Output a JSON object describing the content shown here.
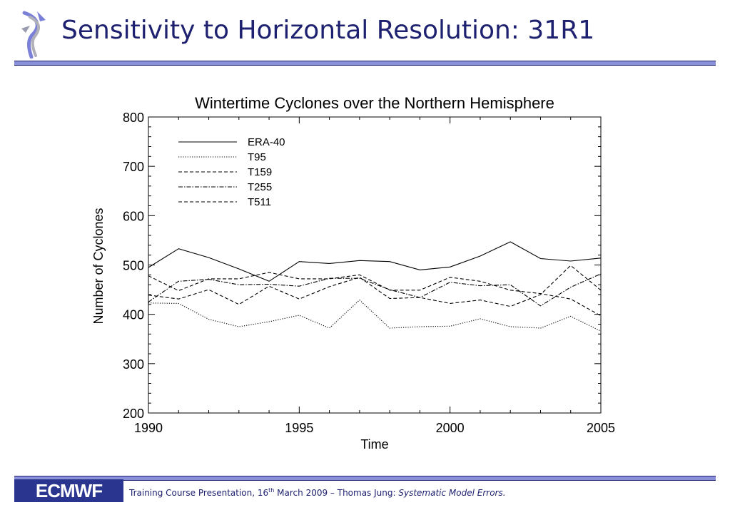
{
  "header": {
    "title": "Sensitivity to Horizontal Resolution: 31R1"
  },
  "footer": {
    "logo_text": "ECMWF",
    "text_prefix": "Training Course Presentation, 16",
    "text_sup": "th",
    "text_mid": " March 2009 – Thomas Jung: ",
    "text_italic": "Systematic Model Errors."
  },
  "colors": {
    "accent": "#1e2170",
    "rule": "#8a90d8",
    "logo_bg": "#2a3590"
  },
  "icons": {
    "emblem": "ecmwf-emblem-icon"
  },
  "chart_data": {
    "type": "line",
    "title": "Wintertime Cyclones over the Northern Hemisphere",
    "xlabel": "Time",
    "ylabel": "Number of Cyclones",
    "xlim": [
      1990,
      2005
    ],
    "ylim": [
      200,
      800
    ],
    "xticks": [
      1990,
      1995,
      2000,
      2005
    ],
    "yticks": [
      200,
      300,
      400,
      500,
      600,
      700,
      800
    ],
    "grid": false,
    "legend_position": "top-left",
    "x": [
      1990,
      1991,
      1992,
      1993,
      1994,
      1995,
      1996,
      1997,
      1998,
      1999,
      2000,
      2001,
      2002,
      2003,
      2004,
      2005
    ],
    "series": [
      {
        "name": "ERA-40",
        "style": "solid",
        "values": [
          495,
          533,
          515,
          492,
          467,
          507,
          503,
          509,
          507,
          490,
          496,
          518,
          547,
          513,
          508,
          514
        ]
      },
      {
        "name": "T95",
        "style": "dotted",
        "values": [
          423,
          422,
          390,
          375,
          385,
          398,
          372,
          429,
          372,
          375,
          376,
          391,
          375,
          372,
          396,
          366
        ]
      },
      {
        "name": "T159",
        "style": "dashed",
        "values": [
          478,
          448,
          472,
          472,
          485,
          472,
          472,
          480,
          449,
          449,
          475,
          467,
          449,
          442,
          431,
          397
        ]
      },
      {
        "name": "T255",
        "style": "dashdot",
        "values": [
          425,
          467,
          471,
          460,
          461,
          457,
          473,
          473,
          450,
          434,
          465,
          458,
          460,
          417,
          455,
          482
        ]
      },
      {
        "name": "T511",
        "style": "dashed",
        "values": [
          439,
          431,
          450,
          420,
          457,
          431,
          456,
          475,
          432,
          434,
          422,
          429,
          416,
          440,
          499,
          449
        ]
      }
    ]
  }
}
